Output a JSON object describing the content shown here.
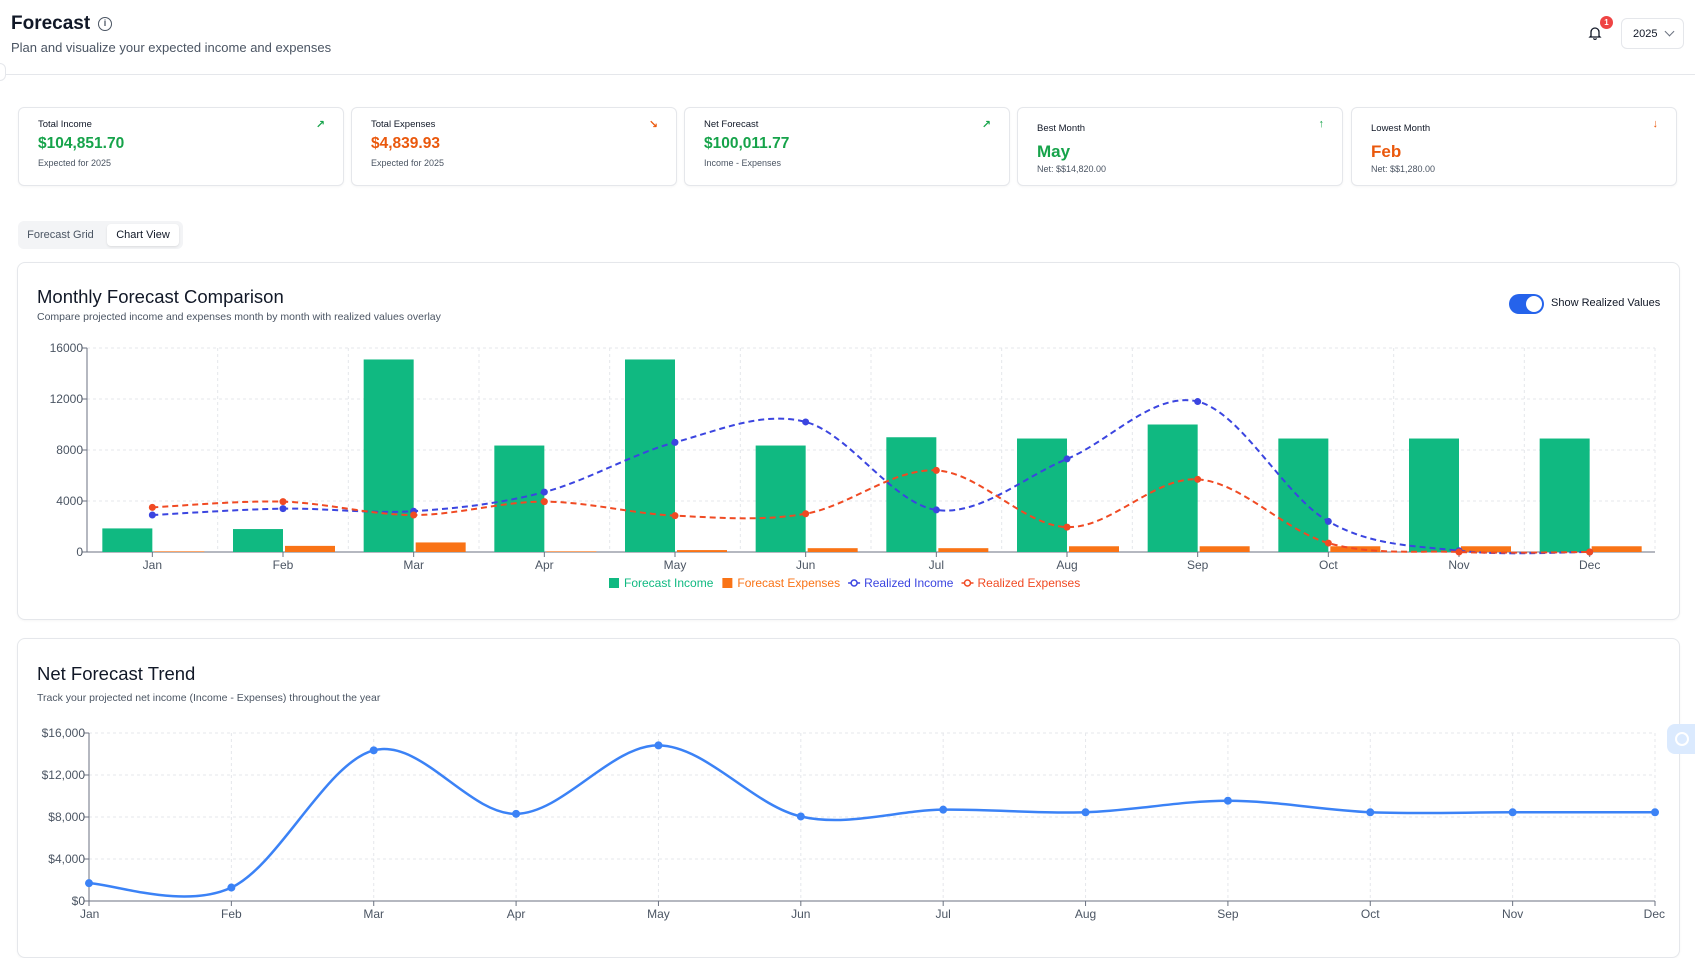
{
  "header": {
    "title": "Forecast",
    "subtitle": "Plan and visualize your expected income and expenses",
    "notification_count": "1",
    "year": "2025"
  },
  "stats": [
    {
      "label": "Total Income",
      "value": "$104,851.70",
      "note": "Expected for 2025",
      "trend_icon": "trending-up-icon",
      "color": "#16a34a"
    },
    {
      "label": "Total Expenses",
      "value": "$4,839.93",
      "note": "Expected for 2025",
      "trend_icon": "trending-down-icon",
      "color": "#ea580c"
    },
    {
      "label": "Net Forecast",
      "value": "$100,011.77",
      "note": "Income - Expenses",
      "trend_icon": "trending-up-icon",
      "color": "#16a34a"
    },
    {
      "label": "Best Month",
      "value": "May",
      "note": "Net: $$14,820.00",
      "trend_icon": "arrow-up-icon",
      "color": "#16a34a"
    },
    {
      "label": "Lowest Month",
      "value": "Feb",
      "note": "Net: $$1,280.00",
      "trend_icon": "arrow-down-icon",
      "color": "#ea580c"
    }
  ],
  "tabs": {
    "grid": "Forecast Grid",
    "chart": "Chart View"
  },
  "comparison": {
    "title": "Monthly Forecast Comparison",
    "description": "Compare projected income and expenses month by month with realized values overlay",
    "toggle_label": "Show Realized Values",
    "toggle_on": true
  },
  "trend": {
    "title": "Net Forecast Trend",
    "description": "Track your projected net income (Income - Expenses) throughout the year"
  },
  "chart_data": [
    {
      "type": "bar",
      "categories": [
        "Jan",
        "Feb",
        "Mar",
        "Apr",
        "May",
        "Jun",
        "Jul",
        "Aug",
        "Sep",
        "Oct",
        "Nov",
        "Dec"
      ],
      "ylim": [
        0,
        16000
      ],
      "yticks": [
        "0",
        "4000",
        "8000",
        "12000",
        "16000"
      ],
      "series": [
        {
          "name": "Forecast Income",
          "kind": "bar",
          "color": "#10b981",
          "values": [
            1850,
            1800,
            15100,
            8350,
            15100,
            8350,
            9000,
            8900,
            10000,
            8900,
            8900,
            8900
          ]
        },
        {
          "name": "Forecast Expenses",
          "kind": "bar",
          "color": "#f97316",
          "values": [
            50,
            480,
            750,
            50,
            150,
            300,
            300,
            450,
            450,
            450,
            450,
            450
          ]
        },
        {
          "name": "Realized Income",
          "kind": "line",
          "color": "#3b45e0",
          "values": [
            2900,
            3400,
            3200,
            4700,
            8600,
            10200,
            3300,
            7300,
            11800,
            2400,
            100,
            0
          ]
        },
        {
          "name": "Realized Expenses",
          "kind": "line",
          "color": "#f04a23",
          "values": [
            3500,
            3950,
            2900,
            3950,
            2850,
            3000,
            6400,
            1950,
            5700,
            700,
            0,
            0
          ]
        }
      ],
      "grid": true,
      "legend": "bottom"
    },
    {
      "type": "line",
      "categories": [
        "Jan",
        "Feb",
        "Mar",
        "Apr",
        "May",
        "Jun",
        "Jul",
        "Aug",
        "Sep",
        "Oct",
        "Nov",
        "Dec"
      ],
      "ylim": [
        0,
        16000
      ],
      "yticks": [
        "$0",
        "$4,000",
        "$8,000",
        "$12,000",
        "$16,000"
      ],
      "series": [
        {
          "color": "#3b82f6",
          "values": [
            1700,
            1280,
            14350,
            8300,
            14820,
            8050,
            8700,
            8450,
            9550,
            8450,
            8450,
            8450
          ]
        }
      ],
      "grid": true
    }
  ]
}
